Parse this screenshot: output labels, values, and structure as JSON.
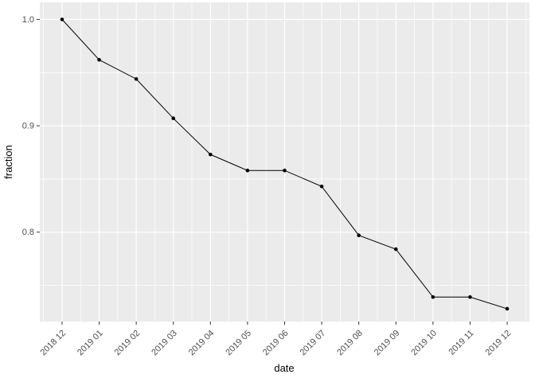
{
  "chart_data": {
    "type": "line",
    "title": "",
    "xlabel": "date",
    "ylabel": "fraction",
    "categories": [
      "2018 12",
      "2019 01",
      "2019 02",
      "2019 03",
      "2019 04",
      "2019 05",
      "2019 06",
      "2019 07",
      "2019 08",
      "2019 09",
      "2019 10",
      "2019 11",
      "2019 12"
    ],
    "values": [
      1.0,
      0.962,
      0.944,
      0.907,
      0.873,
      0.858,
      0.858,
      0.843,
      0.797,
      0.784,
      0.739,
      0.739,
      0.728
    ],
    "y_ticks": [
      "1.0",
      "0.9",
      "0.8"
    ],
    "y_tick_values": [
      1.0,
      0.9,
      0.8
    ],
    "y_minor_values": [
      0.95,
      0.85,
      0.75
    ],
    "ylim": [
      0.716,
      1.016
    ],
    "grid": true,
    "legend": "none",
    "x_label_angle_deg": 45,
    "style": {
      "panel_bg": "#ebebeb",
      "grid_color": "#ffffff",
      "line_color": "#000000",
      "point_color": "#000000",
      "tick_label_color": "#4d4d4d",
      "axis_title_color": "#000000",
      "tick_mark_color": "#333333",
      "figure_bg": "#ffffff"
    }
  }
}
